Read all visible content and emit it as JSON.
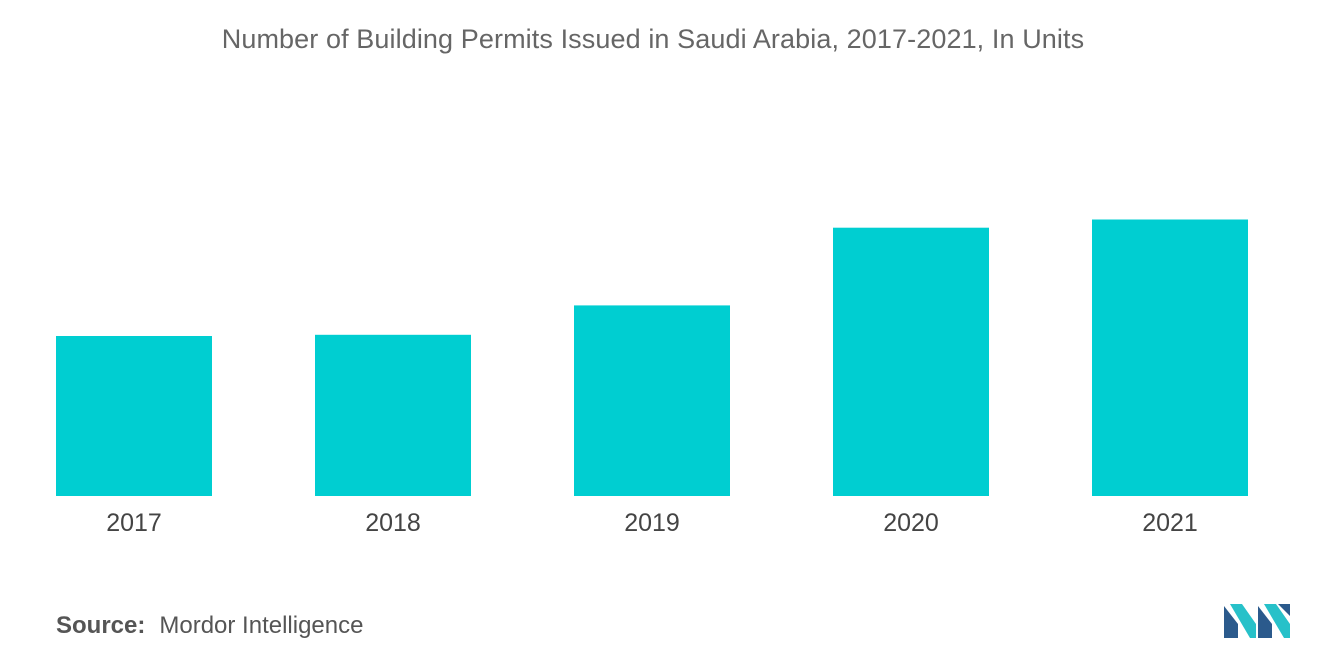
{
  "chart_data": {
    "type": "bar",
    "title": "Number of Building Permits Issued in Saudi Arabia, 2017-2021, In Units",
    "categories": [
      "2017",
      "2018",
      "2019",
      "2020",
      "2021"
    ],
    "values": [
      136,
      137,
      162,
      228,
      235
    ],
    "ylim": [
      0,
      300
    ],
    "grid": false,
    "bar_color": "#00ced1",
    "tick_color": "#444444"
  },
  "source": {
    "label": "Source:",
    "text": "Mordor Intelligence"
  },
  "logo": {
    "icon": "mordor-intelligence-logo-icon",
    "colors": [
      "#2b5a8c",
      "#27c1c9"
    ]
  }
}
